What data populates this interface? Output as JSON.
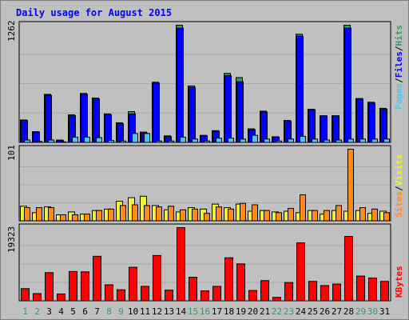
{
  "title": "Daily usage for August 2015",
  "colors": {
    "title": "#0000ff",
    "panel_bg": "#c0c0c0",
    "hits": "#339966",
    "files": "#0000ff",
    "pages": "#4ac8f0",
    "visits": "#f0f040",
    "sites": "#ff8c1a",
    "kbytes": "#ff0000",
    "weekend_label": "#339966",
    "weekday_label": "#000000"
  },
  "chart_data": [
    {
      "type": "bar",
      "name": "hits-files-pages",
      "ymax_label": "1262",
      "ymax": 1262,
      "legend": [
        "Pages",
        "/",
        "Files",
        "/",
        "Hits"
      ],
      "categories": [
        "1",
        "2",
        "3",
        "4",
        "5",
        "6",
        "7",
        "8",
        "9",
        "10",
        "11",
        "12",
        "13",
        "14",
        "15",
        "16",
        "17",
        "18",
        "19",
        "20",
        "21",
        "22",
        "23",
        "24",
        "25",
        "26",
        "27",
        "28",
        "29",
        "30",
        "31"
      ],
      "series": [
        {
          "name": "Hits",
          "values": [
            245,
            120,
            520,
            30,
            300,
            530,
            480,
            310,
            215,
            335,
            115,
            650,
            75,
            1262,
            610,
            80,
            130,
            745,
            700,
            150,
            340,
            65,
            240,
            1165,
            360,
            290,
            290,
            1262,
            475,
            435,
            370
          ]
        },
        {
          "name": "Files",
          "values": [
            240,
            115,
            510,
            25,
            290,
            520,
            470,
            300,
            205,
            310,
            105,
            640,
            65,
            1230,
            595,
            75,
            125,
            720,
            655,
            140,
            330,
            60,
            230,
            1145,
            355,
            290,
            290,
            1230,
            470,
            425,
            360
          ]
        },
        {
          "name": "Pages",
          "values": [
            30,
            15,
            30,
            10,
            60,
            60,
            55,
            25,
            20,
            100,
            100,
            20,
            20,
            60,
            40,
            20,
            50,
            50,
            40,
            80,
            40,
            20,
            40,
            70,
            40,
            30,
            30,
            40,
            40,
            40,
            40
          ]
        }
      ]
    },
    {
      "type": "bar",
      "name": "visits-sites",
      "ymax_label": "101",
      "ymax": 101,
      "legend": [
        "Sites",
        "/",
        "Visits"
      ],
      "categories": [
        "1",
        "2",
        "3",
        "4",
        "5",
        "6",
        "7",
        "8",
        "9",
        "10",
        "11",
        "12",
        "13",
        "14",
        "15",
        "16",
        "17",
        "18",
        "19",
        "20",
        "21",
        "22",
        "23",
        "24",
        "25",
        "26",
        "27",
        "28",
        "29",
        "30",
        "31"
      ],
      "series": [
        {
          "name": "Visits",
          "values": [
            21,
            12,
            20,
            9,
            13,
            10,
            15,
            17,
            28,
            33,
            35,
            22,
            16,
            13,
            19,
            17,
            24,
            19,
            24,
            14,
            15,
            13,
            14,
            12,
            15,
            10,
            15,
            14,
            15,
            11,
            14
          ]
        },
        {
          "name": "Sites",
          "values": [
            19,
            19,
            19,
            9,
            9,
            10,
            15,
            17,
            22,
            23,
            22,
            20,
            21,
            16,
            17,
            11,
            20,
            17,
            25,
            23,
            15,
            12,
            18,
            37,
            15,
            15,
            22,
            101,
            19,
            17,
            12
          ]
        }
      ]
    },
    {
      "type": "bar",
      "name": "kbytes",
      "ymax_label": "19323",
      "ymax": 19323,
      "legend": [
        "KBytes"
      ],
      "categories": [
        "1",
        "2",
        "3",
        "4",
        "5",
        "6",
        "7",
        "8",
        "9",
        "10",
        "11",
        "12",
        "13",
        "14",
        "15",
        "16",
        "17",
        "18",
        "19",
        "20",
        "21",
        "22",
        "23",
        "24",
        "25",
        "26",
        "27",
        "28",
        "29",
        "30",
        "31"
      ],
      "series": [
        {
          "name": "KBytes",
          "values": [
            3300,
            2000,
            7500,
            1900,
            7800,
            7700,
            11800,
            4300,
            3000,
            8900,
            3900,
            12000,
            2900,
            19323,
            6300,
            2700,
            3900,
            11400,
            9800,
            2800,
            5400,
            1000,
            4900,
            15300,
            5200,
            4100,
            4500,
            17000,
            6600,
            6100,
            5200
          ]
        }
      ]
    }
  ],
  "x_labels": [
    "1",
    "2",
    "3",
    "4",
    "5",
    "6",
    "7",
    "8",
    "9",
    "10",
    "11",
    "12",
    "13",
    "14",
    "15",
    "16",
    "17",
    "18",
    "19",
    "20",
    "21",
    "22",
    "23",
    "24",
    "25",
    "26",
    "27",
    "28",
    "29",
    "30",
    "31"
  ],
  "weekend_days": [
    "1",
    "2",
    "8",
    "9",
    "15",
    "16",
    "22",
    "23",
    "29",
    "30"
  ]
}
